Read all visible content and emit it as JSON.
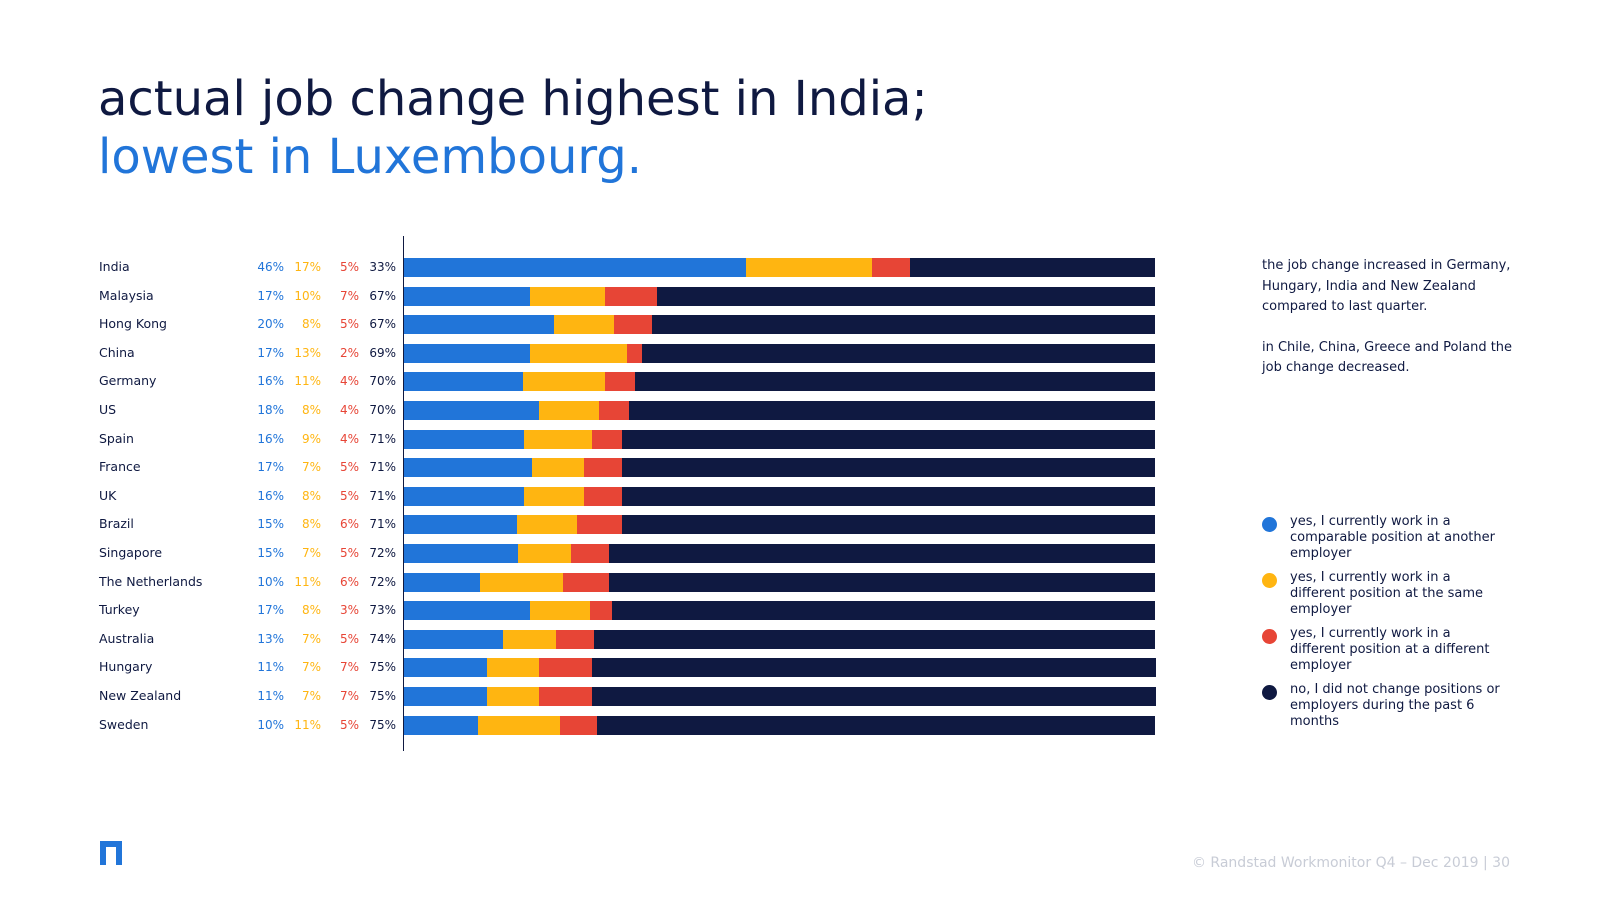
{
  "title": {
    "line1": "actual job change highest in India;",
    "line2": "lowest in Luxembourg."
  },
  "note": {
    "p1": "the job change increased in Germany, Hungary, India and New Zealand compared to last quarter.",
    "p2": "in Chile, China, Greece and Poland the job change decreased."
  },
  "legend": [
    {
      "label": "yes, I currently work in a comparable position at another employer",
      "color": "#2175d9"
    },
    {
      "label": "yes, I currently work in a different position at the same employer",
      "color": "#ffb511"
    },
    {
      "label": "yes, I currently work in a different position at a different employer",
      "color": "#e74536"
    },
    {
      "label": "no, I did not change positions or employers during the past 6 months",
      "color": "#0f1941"
    }
  ],
  "footer": "© Randstad Workmonitor Q4 – Dec 2019 | 30",
  "chart_data": {
    "type": "bar",
    "orientation": "horizontal",
    "stacked": "100%",
    "categories": [
      "India",
      "Malaysia",
      "Hong Kong",
      "China",
      "Germany",
      "US",
      "Spain",
      "France",
      "UK",
      "Brazil",
      "Singapore",
      "The Netherlands",
      "Turkey",
      "Australia",
      "Hungary",
      "New Zealand",
      "Sweden"
    ],
    "series": [
      {
        "color": "#2175d9",
        "values": [
          46,
          17,
          20,
          17,
          16,
          18,
          16,
          17,
          16,
          15,
          15,
          10,
          17,
          13,
          11,
          11,
          10
        ]
      },
      {
        "color": "#ffb511",
        "values": [
          17,
          10,
          8,
          13,
          11,
          8,
          9,
          7,
          8,
          8,
          7,
          11,
          8,
          7,
          7,
          7,
          11
        ]
      },
      {
        "color": "#e74536",
        "values": [
          5,
          7,
          5,
          2,
          4,
          4,
          4,
          5,
          5,
          6,
          5,
          6,
          3,
          5,
          7,
          7,
          5
        ]
      },
      {
        "color": "#0f1941",
        "values": [
          33,
          67,
          67,
          69,
          70,
          70,
          71,
          71,
          71,
          71,
          72,
          72,
          73,
          74,
          75,
          75,
          75
        ]
      }
    ],
    "label_suffix": "%",
    "legend_position": "right"
  }
}
